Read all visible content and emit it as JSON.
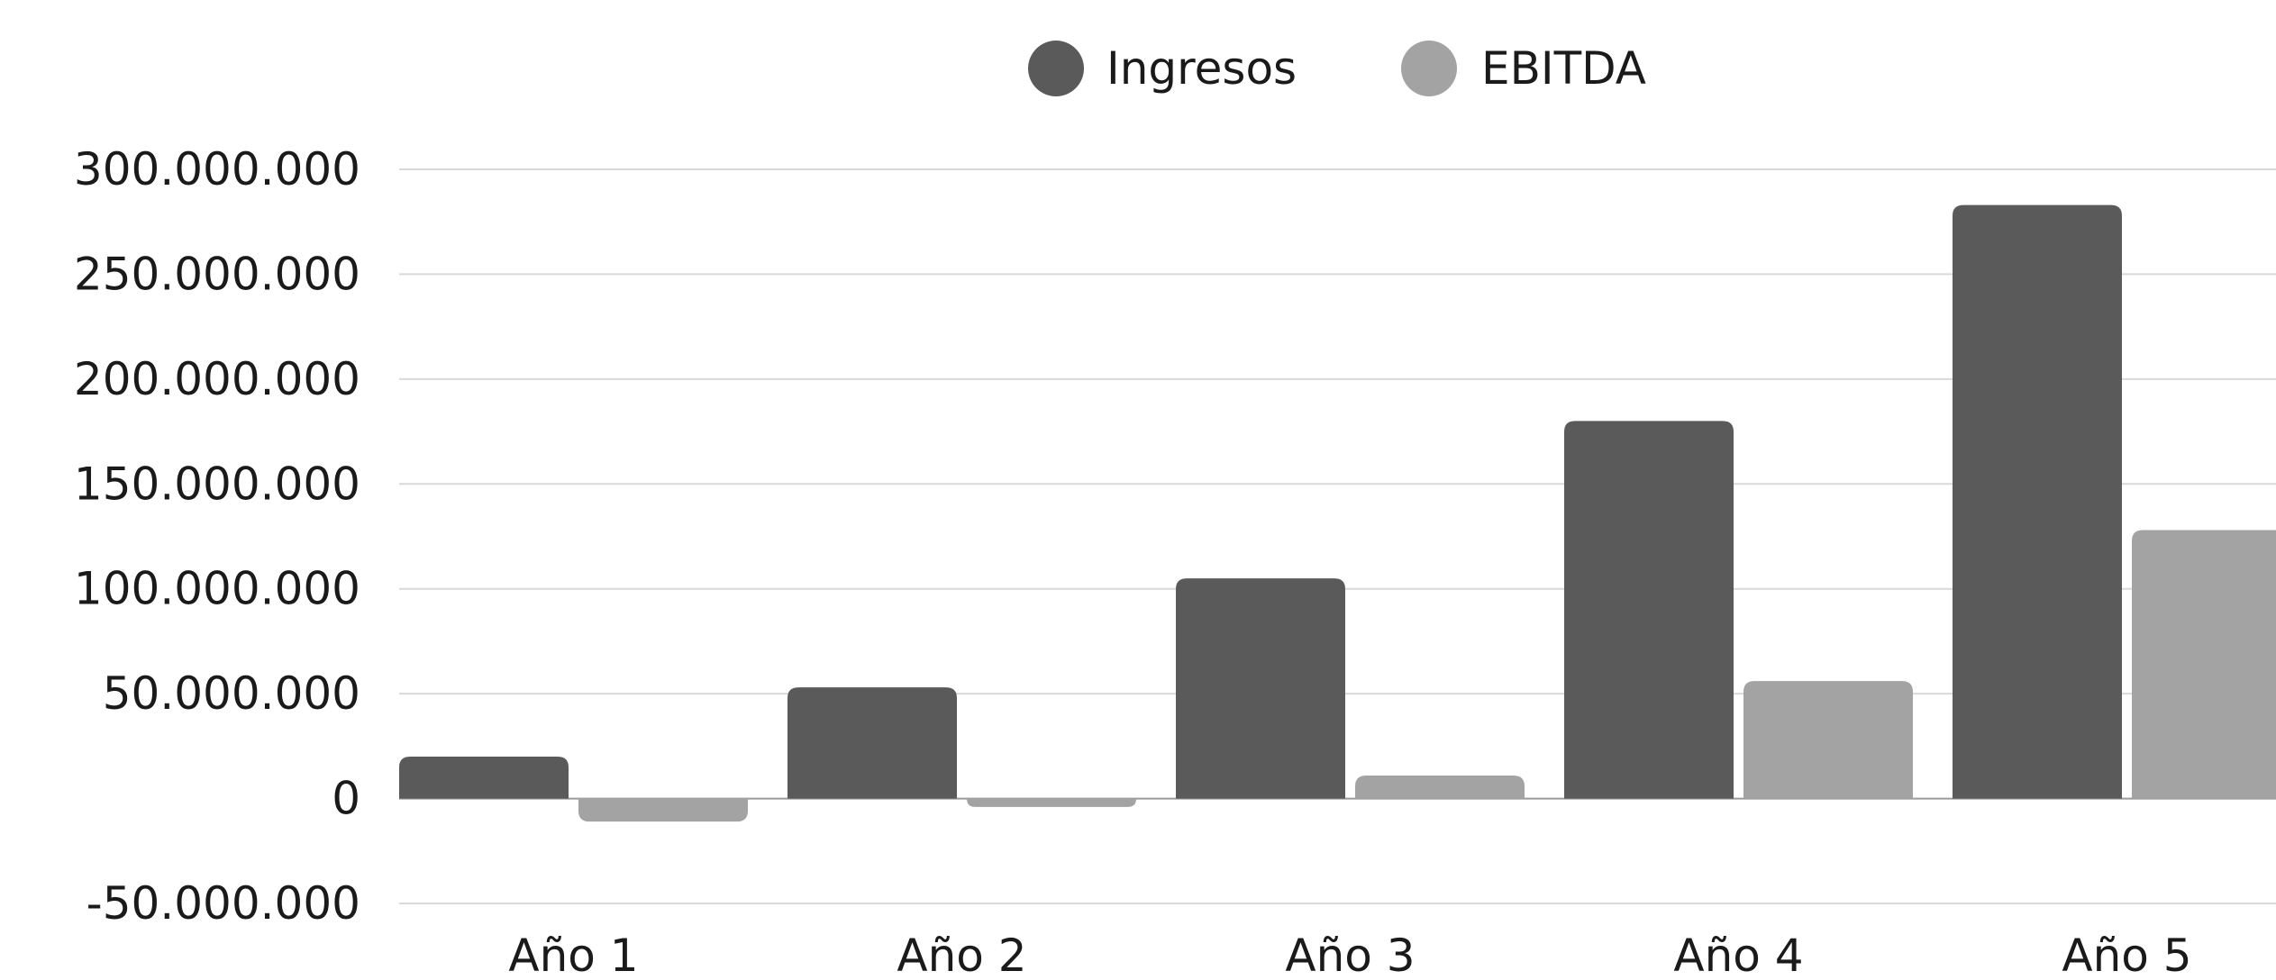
{
  "chart_data": {
    "type": "bar",
    "categories": [
      "Año 1",
      "Año 2",
      "Año 3",
      "Año 4",
      "Año 5"
    ],
    "series": [
      {
        "name": "Ingresos",
        "color": "#5a5a5a",
        "values": [
          20000000,
          53000000,
          105000000,
          180000000,
          283000000
        ]
      },
      {
        "name": "EBITDA",
        "color": "#a3a3a3",
        "values": [
          -11000000,
          -4000000,
          11000000,
          56000000,
          128000000
        ]
      }
    ],
    "y_ticks": [
      {
        "value": 300000000,
        "label": "300.000.000"
      },
      {
        "value": 250000000,
        "label": "250.000.000"
      },
      {
        "value": 200000000,
        "label": "200.000.000"
      },
      {
        "value": 150000000,
        "label": "150.000.000"
      },
      {
        "value": 100000000,
        "label": "100.000.000"
      },
      {
        "value": 50000000,
        "label": "50.000.000"
      },
      {
        "value": 0,
        "label": "0"
      },
      {
        "value": -50000000,
        "label": "-50.000.000"
      }
    ],
    "ylim": [
      -50000000,
      300000000
    ],
    "grid": true,
    "legend": "top-center",
    "title": "",
    "xlabel": "",
    "ylabel": ""
  }
}
